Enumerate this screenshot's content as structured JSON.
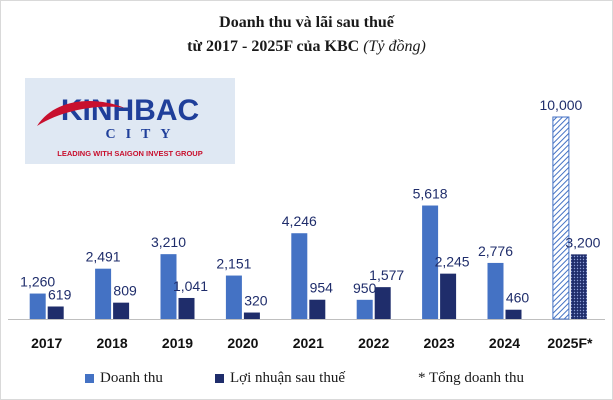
{
  "title_line1": "Doanh thu và lãi sau thuế",
  "title_line2_main": "từ 2017 - 2025F của KBC",
  "title_line2_unit": "(Tỷ đồng)",
  "logo": {
    "brand": "KINHBAC",
    "city": "CITY",
    "tagline": "LEADING WITH SAIGON INVEST GROUP",
    "colors": {
      "blue": "#1f3f9a",
      "red": "#c8102e",
      "bg": "#dfe8f3"
    }
  },
  "legend": {
    "revenue": "Doanh thu",
    "profit": "Lợi nhuận sau thuế",
    "total_note": "* Tổng doanh thu"
  },
  "colors": {
    "revenue": "#4472c4",
    "profit": "#1f2d6b",
    "axis": "#bfbfbf"
  },
  "chart_data": {
    "type": "bar",
    "categories": [
      "2017",
      "2018",
      "2019",
      "2020",
      "2021",
      "2022",
      "2023",
      "2024",
      "2025F*"
    ],
    "series": [
      {
        "name": "Doanh thu",
        "values": [
          1260,
          2491,
          3210,
          2151,
          4246,
          950,
          5618,
          2776,
          10000
        ],
        "labels": [
          "1,260",
          "2,491",
          "3,210",
          "2,151",
          "4,246",
          "950",
          "5,618",
          "2,776",
          "10,000"
        ]
      },
      {
        "name": "Lợi nhuận sau thuế",
        "values": [
          619,
          809,
          1041,
          320,
          954,
          1577,
          2245,
          460,
          3200
        ],
        "labels": [
          "619",
          "809",
          "1,041",
          "320",
          "954",
          "1,577",
          "2,245",
          "460",
          "3,200"
        ]
      }
    ],
    "projected_category": "2025F*",
    "title": "Doanh thu và lãi sau thuế từ 2017 - 2025F của KBC (Tỷ đồng)"
  }
}
